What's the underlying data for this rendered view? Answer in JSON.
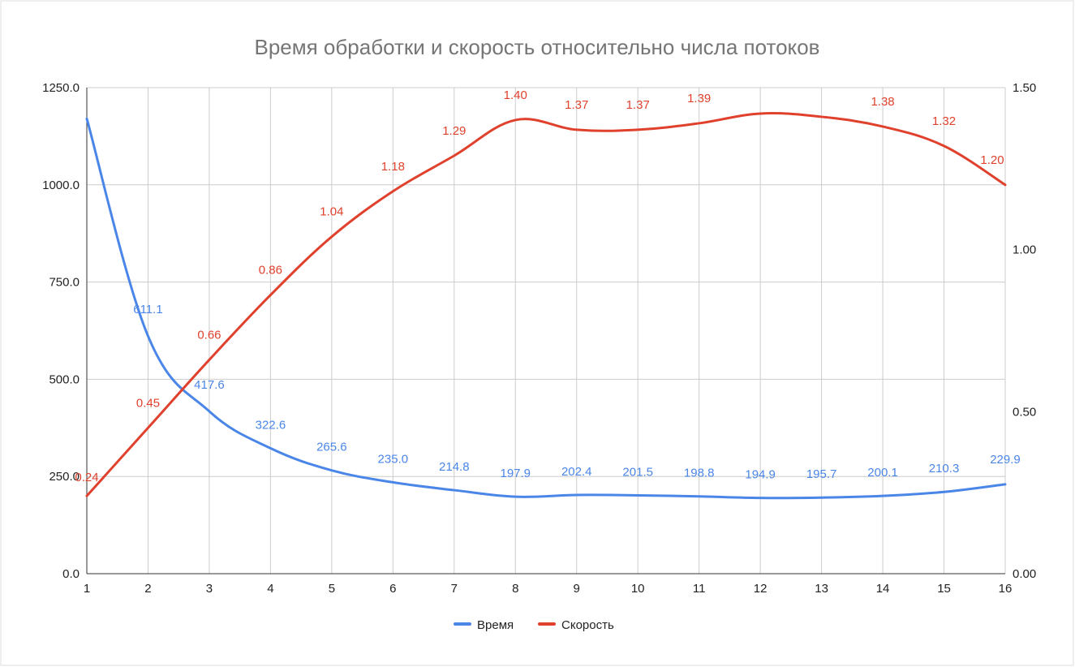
{
  "chart_data": {
    "type": "line",
    "title": "Время обработки и скорость относительно числа потоков",
    "xlabel": "",
    "ylabel": "",
    "x": [
      1,
      2,
      3,
      4,
      5,
      6,
      7,
      8,
      9,
      10,
      11,
      12,
      13,
      14,
      15,
      16
    ],
    "x_tick_labels": [
      "1",
      "2",
      "3",
      "4",
      "5",
      "6",
      "7",
      "8",
      "9",
      "10",
      "11",
      "12",
      "13",
      "14",
      "15",
      "16"
    ],
    "xlim": [
      1,
      16
    ],
    "ylim_left": [
      0,
      1250
    ],
    "ylim_right": [
      0,
      1.5
    ],
    "y_left_ticks": [
      "0.0",
      "250.0",
      "500.0",
      "750.0",
      "1000.0",
      "1250.0"
    ],
    "y_right_ticks": [
      "0.00",
      "0.50",
      "1.00",
      "1.50"
    ],
    "grid": true,
    "legend_position": "bottom",
    "series": [
      {
        "name": "Время",
        "axis": "left",
        "color": "#4a86e8",
        "values": [
          1170,
          611.1,
          417.6,
          322.6,
          265.6,
          235.0,
          214.8,
          197.9,
          202.4,
          201.5,
          198.8,
          194.9,
          195.7,
          200.1,
          210.3,
          229.9
        ],
        "labels": [
          "",
          "611.1",
          "417.6",
          "322.6",
          "265.6",
          "235.0",
          "214.8",
          "197.9",
          "202.4",
          "201.5",
          "198.8",
          "194.9",
          "195.7",
          "200.1",
          "210.3",
          "229.9"
        ]
      },
      {
        "name": "Скорость",
        "axis": "right",
        "color": "#e0412d",
        "values": [
          0.24,
          0.45,
          0.66,
          0.86,
          1.04,
          1.18,
          1.29,
          1.4,
          1.37,
          1.37,
          1.39,
          1.42,
          1.41,
          1.38,
          1.32,
          1.2
        ],
        "labels": [
          "0.24",
          "0.45",
          "0.66",
          "0.86",
          "1.04",
          "1.18",
          "1.29",
          "1.40",
          "1.37",
          "1.37",
          "1.39",
          "",
          "",
          "1.38",
          "1.32",
          "1.20"
        ]
      }
    ]
  }
}
